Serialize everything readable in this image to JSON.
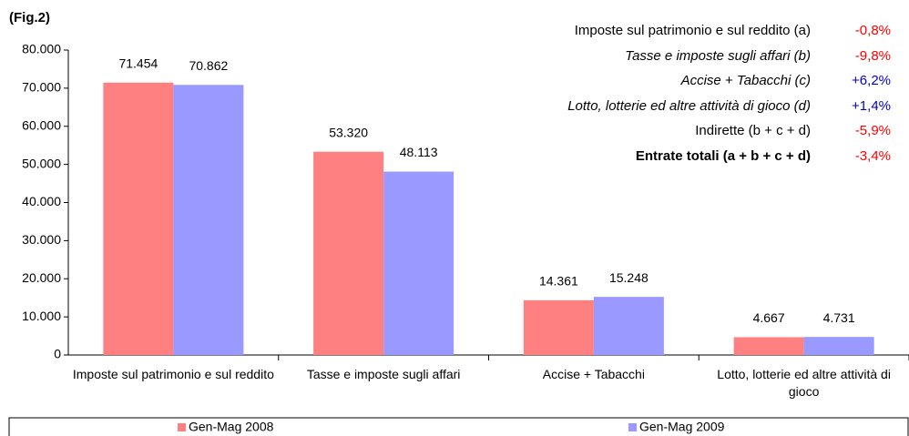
{
  "chart_data": {
    "type": "bar",
    "title": "(Fig.2)",
    "categories": [
      "Imposte sul patrimonio e sul reddito",
      "Tasse e imposte sugli affari",
      "Accise + Tabacchi",
      "Lotto, lotterie ed altre attività di gioco"
    ],
    "series": [
      {
        "name": "Gen-Mag 2008",
        "color": "#ff8080",
        "values": [
          71454,
          53320,
          14361,
          4667
        ],
        "value_labels": [
          "71.454",
          "53.320",
          "14.361",
          "4.667"
        ]
      },
      {
        "name": "Gen-Mag 2009",
        "color": "#9999ff",
        "values": [
          70862,
          48113,
          15248,
          4731
        ],
        "value_labels": [
          "70.862",
          "48.113",
          "15.248",
          "4.731"
        ]
      }
    ],
    "ylim": [
      0,
      80000
    ],
    "yticks": [
      0,
      {
        "value": 10000,
        "label": "10.000"
      },
      {
        "value": 20000,
        "label": "20.000"
      },
      {
        "value": 30000,
        "label": "30.000"
      },
      {
        "value": 40000,
        "label": "40.000"
      },
      {
        "value": 50000,
        "label": "50.000"
      },
      {
        "value": 60000,
        "label": "60.000"
      },
      {
        "value": 70000,
        "label": "70.000"
      },
      {
        "value": 80000,
        "label": "80.000"
      }
    ],
    "legend": "bottom",
    "annotations": [
      {
        "text": "Imposte sul patrimonio e sul reddito (a)",
        "change": "-0,8%",
        "color": "#ff0000",
        "style": "normal"
      },
      {
        "text": "Tasse e imposte sugli affari (b)",
        "change": "-9,8%",
        "color": "#ff0000",
        "style": "italic"
      },
      {
        "text": "Accise + Tabacchi (c)",
        "change": "+6,2%",
        "color": "#0000cc",
        "style": "italic"
      },
      {
        "text": "Lotto, lotterie ed altre attività di gioco (d)",
        "change": "+1,4%",
        "color": "#0000cc",
        "style": "italic"
      },
      {
        "text": "Indirette (b + c + d)",
        "change": "-5,9%",
        "color": "#ff0000",
        "style": "normal"
      },
      {
        "text": "Entrate totali (a + b + c + d)",
        "change": "-3,4%",
        "color": "#ff0000",
        "style": "bold"
      }
    ]
  }
}
